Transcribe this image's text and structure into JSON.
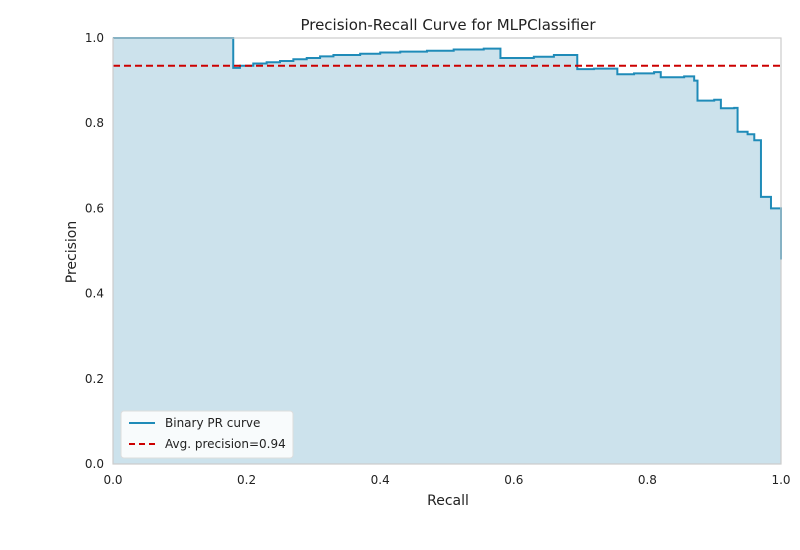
{
  "chart_data": {
    "type": "line",
    "title": "Precision-Recall Curve for MLPClassifier",
    "xlabel": "Recall",
    "ylabel": "Precision",
    "xlim": [
      0.0,
      1.0
    ],
    "ylim": [
      0.0,
      1.0
    ],
    "xticks": [
      "0.0",
      "0.2",
      "0.4",
      "0.6",
      "0.8",
      "1.0"
    ],
    "yticks": [
      "0.0",
      "0.2",
      "0.4",
      "0.6",
      "0.8",
      "1.0"
    ],
    "grid": false,
    "legend_position": "lower-left",
    "series": [
      {
        "name": "Binary PR curve",
        "style": "step-filled",
        "color": "#1f8bb8",
        "fill_color": "#cce2ec",
        "points": [
          [
            0.0,
            1.0
          ],
          [
            0.18,
            1.0
          ],
          [
            0.18,
            0.93
          ],
          [
            0.19,
            0.935
          ],
          [
            0.21,
            0.94
          ],
          [
            0.23,
            0.943
          ],
          [
            0.25,
            0.946
          ],
          [
            0.27,
            0.95
          ],
          [
            0.29,
            0.953
          ],
          [
            0.31,
            0.957
          ],
          [
            0.33,
            0.96
          ],
          [
            0.37,
            0.963
          ],
          [
            0.4,
            0.966
          ],
          [
            0.43,
            0.968
          ],
          [
            0.47,
            0.97
          ],
          [
            0.51,
            0.973
          ],
          [
            0.555,
            0.975
          ],
          [
            0.58,
            0.953
          ],
          [
            0.63,
            0.956
          ],
          [
            0.66,
            0.96
          ],
          [
            0.695,
            0.927
          ],
          [
            0.72,
            0.928
          ],
          [
            0.75,
            0.928
          ],
          [
            0.755,
            0.915
          ],
          [
            0.78,
            0.917
          ],
          [
            0.81,
            0.92
          ],
          [
            0.82,
            0.908
          ],
          [
            0.855,
            0.91
          ],
          [
            0.87,
            0.9
          ],
          [
            0.875,
            0.853
          ],
          [
            0.9,
            0.855
          ],
          [
            0.91,
            0.835
          ],
          [
            0.93,
            0.836
          ],
          [
            0.935,
            0.78
          ],
          [
            0.95,
            0.774
          ],
          [
            0.96,
            0.76
          ],
          [
            0.97,
            0.627
          ],
          [
            0.985,
            0.6
          ],
          [
            1.0,
            0.6
          ],
          [
            1.0,
            0.48
          ]
        ]
      },
      {
        "name": "Avg. precision=0.94",
        "style": "dashed",
        "color": "#cc0000",
        "value": 0.935
      }
    ]
  }
}
